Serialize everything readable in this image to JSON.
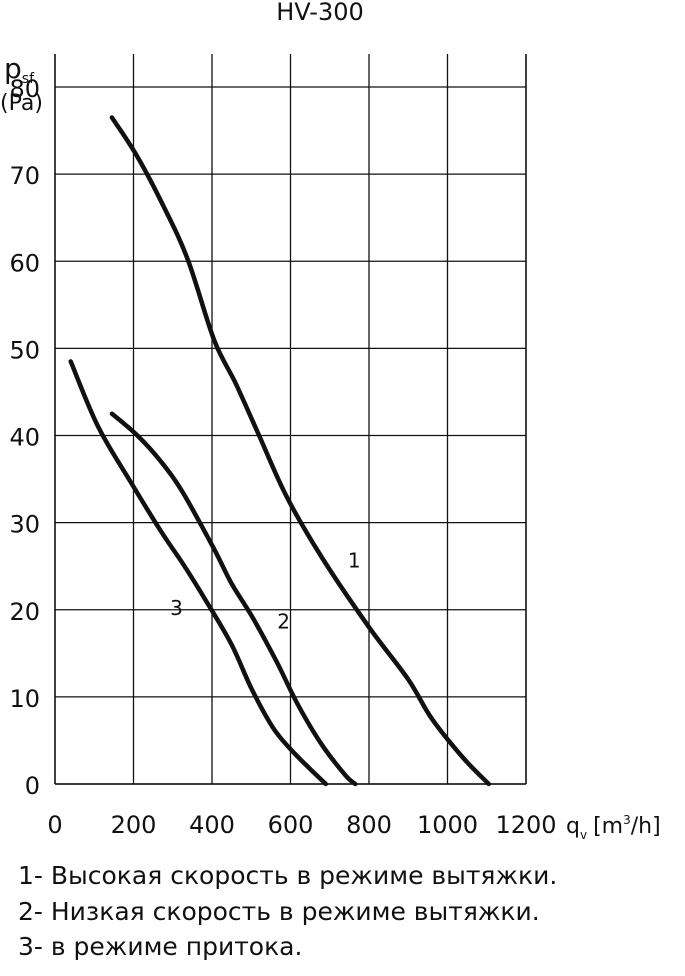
{
  "chart_data": {
    "type": "line",
    "title": "HV-300",
    "ylabel": {
      "symbol": "p",
      "subscript": "sf",
      "unit": "(Pa)"
    },
    "xlabel": {
      "symbol": "q",
      "subscript": "v",
      "unit_pre": "[m",
      "unit_sup": "3",
      "unit_post": "/h]"
    },
    "xlim": [
      0,
      1200
    ],
    "ylim": [
      0,
      80
    ],
    "x_ticks": [
      0,
      200,
      400,
      600,
      800,
      1000,
      1200
    ],
    "y_ticks": [
      0,
      10,
      20,
      30,
      40,
      50,
      60,
      70,
      80
    ],
    "x_tick_labels": [
      "0",
      "200",
      "400",
      "600",
      "800",
      "1000",
      "1200"
    ],
    "y_tick_labels": [
      "0",
      "10",
      "20",
      "30",
      "40",
      "50",
      "60",
      "70",
      "80"
    ],
    "grid": true,
    "color": "#111111",
    "series": [
      {
        "name": "1",
        "x": [
          145,
          210,
          280,
          340,
          405,
          460,
          520,
          590,
          680,
          800,
          900,
          960,
          1040,
          1105
        ],
        "y": [
          76.5,
          72,
          66,
          60,
          51,
          46,
          40,
          33,
          26,
          18,
          12,
          7.5,
          3,
          0
        ]
      },
      {
        "name": "2",
        "x": [
          145,
          210,
          270,
          325,
          405,
          450,
          505,
          565,
          620,
          680,
          740,
          765
        ],
        "y": [
          42.5,
          40,
          37,
          33.5,
          27,
          23,
          19,
          14,
          9,
          4.5,
          1,
          0
        ]
      },
      {
        "name": "3",
        "x": [
          40,
          110,
          195,
          270,
          330,
          385,
          450,
          500,
          555,
          600,
          655,
          690
        ],
        "y": [
          48.5,
          41,
          34.5,
          29,
          25,
          21,
          16,
          11,
          6.5,
          4,
          1.5,
          0
        ]
      }
    ]
  },
  "legend": [
    "1- Высокая скорость в режиме вытяжки.",
    "2- Низкая скорость в режиме вытяжки.",
    "3- в режиме притока."
  ]
}
